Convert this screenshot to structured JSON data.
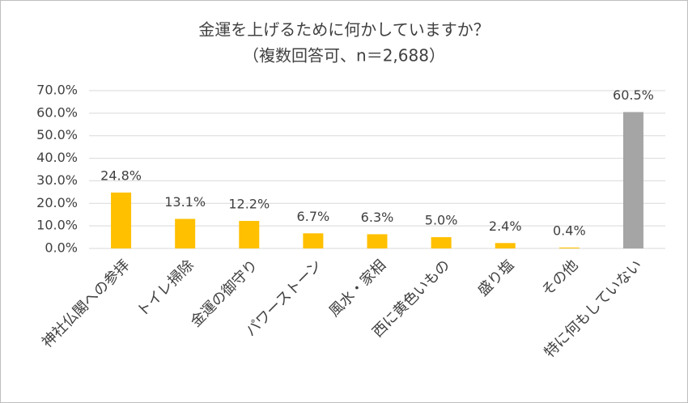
{
  "chart_data": {
    "type": "bar",
    "title": "金運を上げるために何かしていますか？",
    "subtitle": "（複数回答可、n＝2,688）",
    "categories": [
      "神社仏閣への参拝",
      "トイレ掃除",
      "金運の御守り",
      "パワーストーン",
      "風水・家相",
      "西に黄色いもの",
      "盛り塩",
      "その他",
      "特に何もしていない"
    ],
    "values": [
      24.8,
      13.1,
      12.2,
      6.7,
      6.3,
      5.0,
      2.4,
      0.4,
      60.5
    ],
    "value_labels": [
      "24.8%",
      "13.1%",
      "12.2%",
      "6.7%",
      "6.3%",
      "5.0%",
      "2.4%",
      "0.4%",
      "60.5%"
    ],
    "colors": [
      "#ffc000",
      "#ffc000",
      "#ffc000",
      "#ffc000",
      "#ffc000",
      "#ffc000",
      "#ffc000",
      "#ffc000",
      "#a5a5a5"
    ],
    "ylim": [
      0,
      70
    ],
    "yticks": [
      {
        "value": 0,
        "label": "0.0%"
      },
      {
        "value": 10,
        "label": "10.0%"
      },
      {
        "value": 20,
        "label": "20.0%"
      },
      {
        "value": 30,
        "label": "30.0%"
      },
      {
        "value": 40,
        "label": "40.0%"
      },
      {
        "value": 50,
        "label": "50.0%"
      },
      {
        "value": 60,
        "label": "60.0%"
      },
      {
        "value": 70,
        "label": "70.0%"
      }
    ],
    "grid": true
  }
}
